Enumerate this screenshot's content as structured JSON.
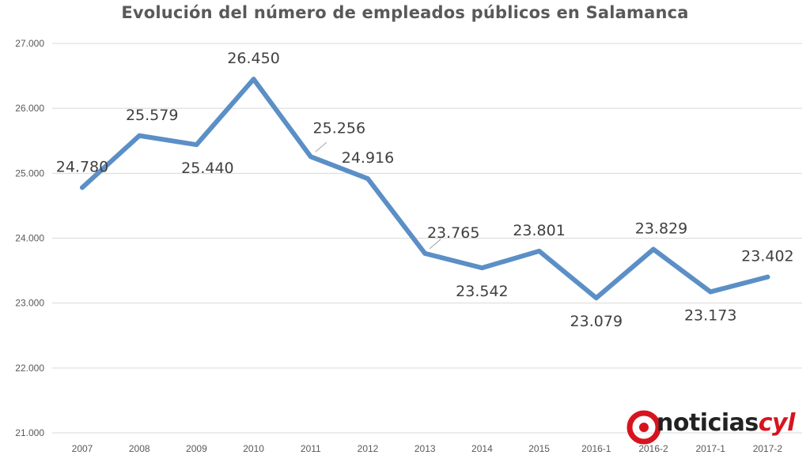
{
  "chart_data": {
    "type": "line",
    "title": "Evolución del número de empleados públicos en Salamanca",
    "xlabel": "",
    "ylabel": "",
    "categories": [
      "2007",
      "2008",
      "2009",
      "2010",
      "2011",
      "2012",
      "2013",
      "2014",
      "2015",
      "2016-1",
      "2016-2",
      "2017-1",
      "2017-2"
    ],
    "series": [
      {
        "values": [
          24780,
          25579,
          25440,
          26450,
          25256,
          24916,
          23765,
          23542,
          23801,
          23079,
          23829,
          23173,
          23402
        ],
        "labels": [
          "24.780",
          "25.579",
          "25.440",
          "26.450",
          "25.256",
          "24.916",
          "23.765",
          "23.542",
          "23.801",
          "23.079",
          "23.829",
          "23.173",
          "23.402"
        ],
        "color": "#5b8fc6"
      }
    ],
    "ylim": [
      21000,
      27000
    ],
    "yticks": [
      21000,
      22000,
      23000,
      24000,
      25000,
      26000,
      27000
    ],
    "ytick_labels": [
      "21.000",
      "22.000",
      "23.000",
      "24.000",
      "25.000",
      "26.000",
      "27.000"
    ],
    "grid": "horizontal",
    "legend": "none"
  },
  "watermark": {
    "brand": "noticias",
    "brand_accent": "cyl",
    "accent_color": "#d7141e"
  }
}
